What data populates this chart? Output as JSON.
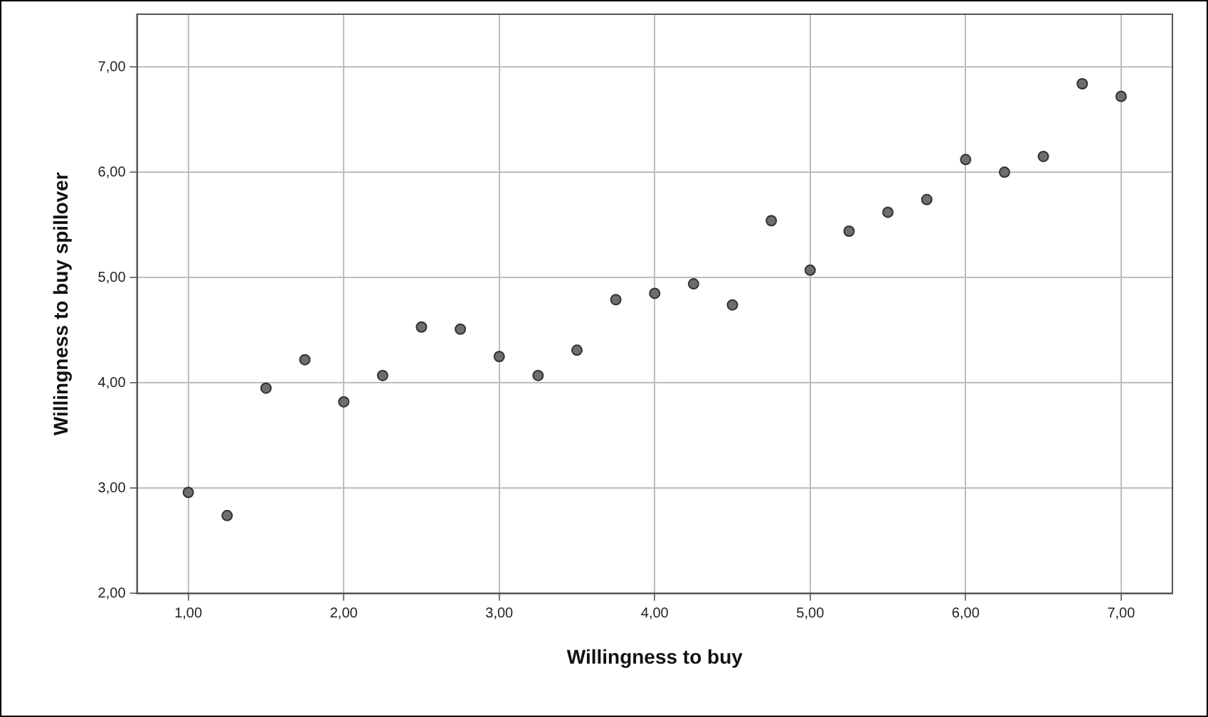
{
  "chart_data": {
    "type": "scatter",
    "xlabel": "Willingness to buy",
    "ylabel": "Willingness to buy spillover",
    "x": [
      1,
      1.25,
      1.5,
      1.75,
      2,
      2.25,
      2.5,
      2.75,
      3,
      3.25,
      3.5,
      3.75,
      4,
      4.25,
      4.5,
      4.75,
      5,
      5.25,
      5.5,
      5.75,
      6,
      6.25,
      6.5,
      6.75,
      7
    ],
    "series": [
      {
        "color": "#6e6e6e",
        "values": [
          2.96,
          2.74,
          3.95,
          4.22,
          3.82,
          4.07,
          4.53,
          4.51,
          4.25,
          4.07,
          4.31,
          4.79,
          4.85,
          4.94,
          4.74,
          5.54,
          5.07,
          5.44,
          5.62,
          5.74,
          6.12,
          6.0,
          6.15,
          6.84,
          6.72
        ]
      }
    ],
    "xlim": [
      0.67,
      7.33
    ],
    "ylim": [
      2,
      7.5
    ],
    "xticks": [
      {
        "value": 1,
        "label": "1,00"
      },
      {
        "value": 2,
        "label": "2,00"
      },
      {
        "value": 3,
        "label": "3,00"
      },
      {
        "value": 4,
        "label": "4,00"
      },
      {
        "value": 5,
        "label": "5,00"
      },
      {
        "value": 6,
        "label": "6,00"
      },
      {
        "value": 7,
        "label": "7,00"
      }
    ],
    "yticks": [
      {
        "value": 2,
        "label": "2,00"
      },
      {
        "value": 3,
        "label": "3,00"
      },
      {
        "value": 4,
        "label": "4,00"
      },
      {
        "value": 5,
        "label": "5,00"
      },
      {
        "value": 6,
        "label": "6,00"
      },
      {
        "value": 7,
        "label": "7,00"
      }
    ],
    "grid": true,
    "legend": false,
    "marker": "circle"
  }
}
